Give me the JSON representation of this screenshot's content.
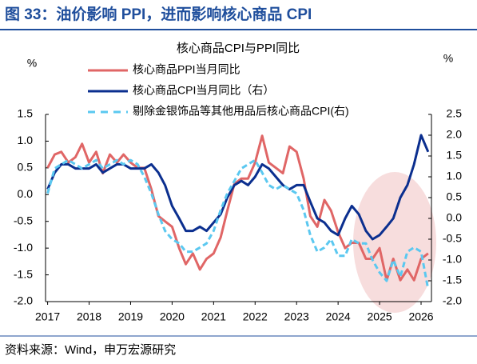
{
  "header": {
    "title": "图 33：油价影响 PPI，进而影响核心商品 CPI"
  },
  "chart_data": {
    "type": "line",
    "title": "核心商品CPI与PPI同比",
    "y_unit": "%",
    "y2_unit": "%",
    "x": [
      2017,
      2017.17,
      2017.33,
      2017.5,
      2017.67,
      2017.83,
      2018,
      2018.17,
      2018.33,
      2018.5,
      2018.67,
      2018.83,
      2019,
      2019.17,
      2019.33,
      2019.5,
      2019.67,
      2019.83,
      2020,
      2020.17,
      2020.33,
      2020.5,
      2020.67,
      2020.83,
      2021,
      2021.17,
      2021.33,
      2021.5,
      2021.67,
      2021.83,
      2022,
      2022.17,
      2022.33,
      2022.5,
      2022.67,
      2022.83,
      2023,
      2023.17,
      2023.33,
      2023.5,
      2023.67,
      2023.83,
      2024,
      2024.17,
      2024.33,
      2024.5,
      2024.67,
      2024.83,
      2025,
      2025.17,
      2025.33,
      2025.5,
      2025.67,
      2025.83,
      2026,
      2026.17
    ],
    "series": [
      {
        "name": "核心商品PPI当月同比",
        "color": "#e06666",
        "line_style": "solid",
        "values": [
          0.5,
          0.75,
          0.8,
          0.6,
          0.7,
          0.95,
          0.6,
          0.8,
          0.4,
          0.75,
          0.6,
          0.75,
          0.6,
          0.5,
          0.5,
          0.1,
          -0.4,
          -0.5,
          -0.6,
          -1.0,
          -1.3,
          -1.1,
          -1.4,
          -1.2,
          -1.1,
          -0.8,
          -0.3,
          0.2,
          0.3,
          0.3,
          0.6,
          1.1,
          0.6,
          0.5,
          0.4,
          0.9,
          0.8,
          0.3,
          -0.4,
          -0.6,
          -0.1,
          -0.3,
          -0.7,
          -1.0,
          -0.9,
          -0.9,
          -1.2,
          -1.2,
          -1.0,
          -1.6,
          -1.2,
          -1.6,
          -1.4,
          -1.6,
          -1.2,
          -1.1
        ]
      },
      {
        "name": "核心商品CPI当月同比（右）",
        "color": "#0b2f8f",
        "line_style": "solid",
        "axis": "y2",
        "values": [
          0.7,
          1.1,
          1.3,
          1.3,
          1.2,
          1.2,
          1.2,
          1.3,
          1.1,
          1.2,
          1.3,
          1.3,
          1.2,
          1.2,
          1.2,
          1.3,
          1.1,
          0.8,
          0.3,
          0.0,
          -0.3,
          -0.3,
          -0.2,
          -0.3,
          -0.1,
          0.1,
          0.5,
          0.8,
          0.9,
          0.8,
          1.0,
          1.3,
          1.2,
          1.0,
          0.8,
          0.7,
          0.8,
          0.8,
          0.4,
          0.0,
          -0.1,
          -0.3,
          -0.4,
          0.0,
          0.3,
          0.1,
          -0.3,
          -0.5,
          -0.4,
          -0.2,
          0.0,
          0.5,
          0.8,
          1.3,
          2.0,
          1.6
        ]
      },
      {
        "name": "剔除金银饰品等其他用品后核心商品CPI(右)",
        "color": "#5bc8f0",
        "line_style": "dashed",
        "axis": "y2",
        "values": [
          0.6,
          1.2,
          1.3,
          1.4,
          1.3,
          1.2,
          1.3,
          1.4,
          1.2,
          1.3,
          1.4,
          1.3,
          1.4,
          1.3,
          1.0,
          0.6,
          0.1,
          -0.3,
          -0.5,
          -0.6,
          -0.8,
          -0.8,
          -0.7,
          -0.6,
          -0.3,
          0.2,
          0.6,
          0.9,
          1.2,
          1.3,
          1.4,
          1.1,
          0.8,
          0.7,
          0.8,
          0.7,
          0.6,
          0.2,
          -0.4,
          -0.8,
          -0.7,
          -0.5,
          -0.9,
          -0.9,
          -0.5,
          -0.6,
          -0.6,
          -1.0,
          -1.3,
          -1.5,
          -1.0,
          -1.4,
          -0.8,
          -0.7,
          -0.8,
          -1.7
        ]
      }
    ],
    "xlim": [
      2016.95,
      2026.25
    ],
    "xticks": [
      2017,
      2018,
      2019,
      2020,
      2021,
      2022,
      2023,
      2024,
      2025,
      2026
    ],
    "ylim": [
      -2,
      1.5
    ],
    "yticks": [
      1.5,
      {
        "value": 1,
        "label": "1.0"
      },
      0.5,
      {
        "value": 0,
        "label": "0.0"
      },
      -0.5,
      {
        "value": -1,
        "label": "-1.0"
      },
      -1.5,
      {
        "value": -2,
        "label": "-2.0"
      }
    ],
    "y2lim": [
      -2,
      2.5
    ],
    "y2ticks": [
      2.5,
      {
        "value": 2,
        "label": "2.0"
      },
      1.5,
      {
        "value": 1,
        "label": "1.0"
      },
      0.5,
      {
        "value": 0,
        "label": "0.0"
      },
      -0.5,
      {
        "value": -1,
        "label": "-1.0"
      },
      -1.5,
      {
        "value": -2,
        "label": "-2.0"
      }
    ]
  },
  "source": "资料来源：Wind，申万宏源研究"
}
